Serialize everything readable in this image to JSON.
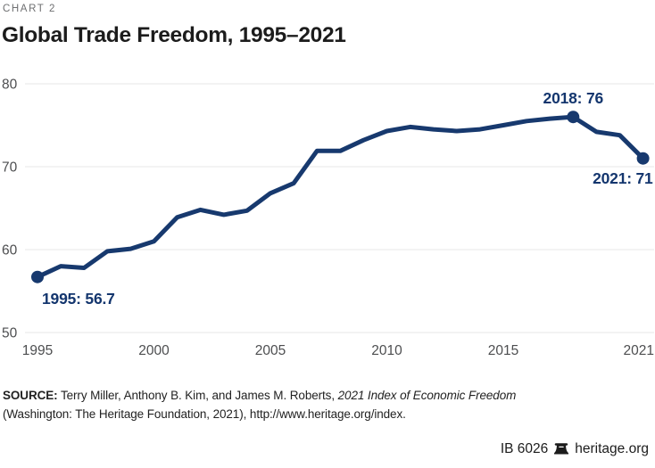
{
  "header": {
    "kicker": "CHART 2",
    "title": "Global Trade Freedom, 1995–2021"
  },
  "chart_data": {
    "type": "line",
    "title": "Global Trade Freedom, 1995–2021",
    "x": [
      1995,
      1996,
      1997,
      1998,
      1999,
      2000,
      2001,
      2002,
      2003,
      2004,
      2005,
      2006,
      2007,
      2008,
      2009,
      2010,
      2011,
      2012,
      2013,
      2014,
      2015,
      2016,
      2017,
      2018,
      2019,
      2020,
      2021
    ],
    "values": [
      56.7,
      58,
      57.8,
      59.8,
      60.1,
      61,
      63.9,
      64.8,
      64.2,
      64.7,
      66.8,
      68,
      71.9,
      71.9,
      73.2,
      74.3,
      74.8,
      74.5,
      74.3,
      74.5,
      75,
      75.5,
      75.8,
      76,
      74.2,
      73.8,
      71
    ],
    "ylim": [
      50,
      80
    ],
    "yticks": [
      80,
      70,
      60,
      50
    ],
    "xticks": [
      1995,
      2000,
      2005,
      2010,
      2015,
      2021
    ],
    "grid": "horizontal",
    "legend": "none",
    "annotations": [
      {
        "year": 1995,
        "value": 56.7,
        "label": "1995: 56.7",
        "placement": "below-right"
      },
      {
        "year": 2018,
        "value": 76,
        "label": "2018: 76",
        "placement": "above-center"
      },
      {
        "year": 2021,
        "value": 71,
        "label": "2021: 71",
        "placement": "below-left"
      }
    ]
  },
  "source": {
    "label": "SOURCE:",
    "authors": " Terry Miller, Anthony B. Kim, and James M. Roberts, ",
    "work_italic": "2021 Index of Economic Freedom",
    "line2": "(Washington: The Heritage Foundation, 2021), http://www.heritage.org/index."
  },
  "footer": {
    "doc_id": "IB 6026",
    "site": "heritage.org"
  },
  "colors": {
    "line": "#17396e",
    "point": "#17396e",
    "annotation_text": "#14366e",
    "grid": "#e7e7e7",
    "axis_text": "#4d4e50",
    "kicker_text": "#6e6f71",
    "title_text": "#1c1c1c"
  }
}
